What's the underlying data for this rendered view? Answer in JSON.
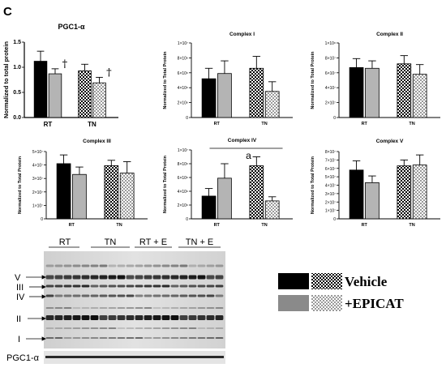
{
  "panel_label": "C",
  "chart_data": [
    {
      "type": "bar",
      "title": "PGC1-α",
      "ylabel": "Normalized to total protein",
      "ylim": [
        0,
        1.5
      ],
      "yticks": [
        0.0,
        0.5,
        1.0,
        1.5
      ],
      "ytick_labels": [
        "0.0",
        "0.5",
        "1.0",
        "1.5"
      ],
      "categories": [
        "RT",
        "TN"
      ],
      "series": [
        {
          "name": "Vehicle",
          "values": [
            1.12,
            0.93
          ],
          "errors": [
            0.2,
            0.13
          ]
        },
        {
          "name": "+EPICAT",
          "values": [
            0.87,
            0.69
          ],
          "errors": [
            0.1,
            0.11
          ]
        }
      ],
      "annotations": [
        {
          "text": "†",
          "category": 0,
          "series": 1
        },
        {
          "text": "†",
          "category": 1,
          "series": 1
        }
      ]
    },
    {
      "type": "bar",
      "title": "Complex I",
      "ylabel": "Normalized to Total Protein",
      "ylim": [
        0,
        10000000
      ],
      "yticks": [
        0,
        2000000,
        4000000,
        6000000,
        8000000,
        10000000
      ],
      "ytick_labels": [
        "0",
        "2×10⁶",
        "4×10⁶",
        "6×10⁶",
        "8×10⁶",
        "1×10⁷"
      ],
      "categories": [
        "RT",
        "TN"
      ],
      "series": [
        {
          "name": "Vehicle",
          "values": [
            5200000,
            6600000
          ],
          "errors": [
            1400000,
            1600000
          ]
        },
        {
          "name": "+EPICAT",
          "values": [
            5900000,
            3500000
          ],
          "errors": [
            1700000,
            1300000
          ]
        }
      ]
    },
    {
      "type": "bar",
      "title": "Complex II",
      "ylabel": "Normalized to Total Protein",
      "ylim": [
        0,
        100000000
      ],
      "yticks": [
        0,
        20000000,
        40000000,
        60000000,
        80000000,
        100000000
      ],
      "ytick_labels": [
        "0",
        "2×10⁷",
        "4×10⁷",
        "6×10⁷",
        "8×10⁷",
        "1×10⁸"
      ],
      "categories": [
        "RT",
        "TN"
      ],
      "series": [
        {
          "name": "Vehicle",
          "values": [
            67000000,
            72000000
          ],
          "errors": [
            12000000,
            11000000
          ]
        },
        {
          "name": "+EPICAT",
          "values": [
            66000000,
            58000000
          ],
          "errors": [
            10000000,
            13000000
          ]
        }
      ]
    },
    {
      "type": "bar",
      "title": "Complex III",
      "ylabel": "Normalized to Total Protein",
      "ylim": [
        0,
        50000000
      ],
      "yticks": [
        0,
        10000000,
        20000000,
        30000000,
        40000000,
        50000000
      ],
      "ytick_labels": [
        "0",
        "1×10⁷",
        "2×10⁷",
        "3×10⁷",
        "4×10⁷",
        "5×10⁷"
      ],
      "categories": [
        "RT",
        "TN"
      ],
      "series": [
        {
          "name": "Vehicle",
          "values": [
            41000000,
            39500000
          ],
          "errors": [
            6500000,
            4000000
          ]
        },
        {
          "name": "+EPICAT",
          "values": [
            33000000,
            34000000
          ],
          "errors": [
            5500000,
            8500000
          ]
        }
      ]
    },
    {
      "type": "bar",
      "title": "Complex IV",
      "ylabel": "Normalized to Total Protein",
      "ylim": [
        0,
        10000000
      ],
      "yticks": [
        0,
        2000000,
        4000000,
        6000000,
        8000000,
        10000000
      ],
      "ytick_labels": [
        "0",
        "2×10⁶",
        "4×10⁶",
        "6×10⁶",
        "8×10⁶",
        "1×10⁷"
      ],
      "categories": [
        "RT",
        "TN"
      ],
      "series": [
        {
          "name": "Vehicle",
          "values": [
            3300000,
            7700000
          ],
          "errors": [
            1100000,
            1300000
          ]
        },
        {
          "name": "+EPICAT",
          "values": [
            5900000,
            2600000
          ],
          "errors": [
            2100000,
            600000
          ]
        }
      ],
      "annotation": "a"
    },
    {
      "type": "bar",
      "title": "Complex V",
      "ylabel": "Normalized to Total Protein",
      "ylim": [
        0,
        80000000
      ],
      "yticks": [
        0,
        10000000,
        20000000,
        30000000,
        40000000,
        50000000,
        60000000,
        70000000,
        80000000
      ],
      "ytick_labels": [
        "0",
        "1×10⁷",
        "2×10⁷",
        "3×10⁷",
        "4×10⁷",
        "5×10⁷",
        "6×10⁷",
        "7×10⁷",
        "8×10⁷"
      ],
      "categories": [
        "RT",
        "TN"
      ],
      "series": [
        {
          "name": "Vehicle",
          "values": [
            58000000,
            63000000
          ],
          "errors": [
            11000000,
            7000000
          ]
        },
        {
          "name": "+EPICAT",
          "values": [
            43000000,
            64000000
          ],
          "errors": [
            8000000,
            12000000
          ]
        }
      ]
    }
  ],
  "blot": {
    "groups": [
      "RT",
      "TN",
      "RT + E",
      "TN + E"
    ],
    "bands": [
      "V",
      "III",
      "IV",
      "II",
      "I"
    ],
    "loading_label": "PGC1-α"
  },
  "legend": {
    "vehicle": "Vehicle",
    "epicat": "+EPICAT"
  }
}
